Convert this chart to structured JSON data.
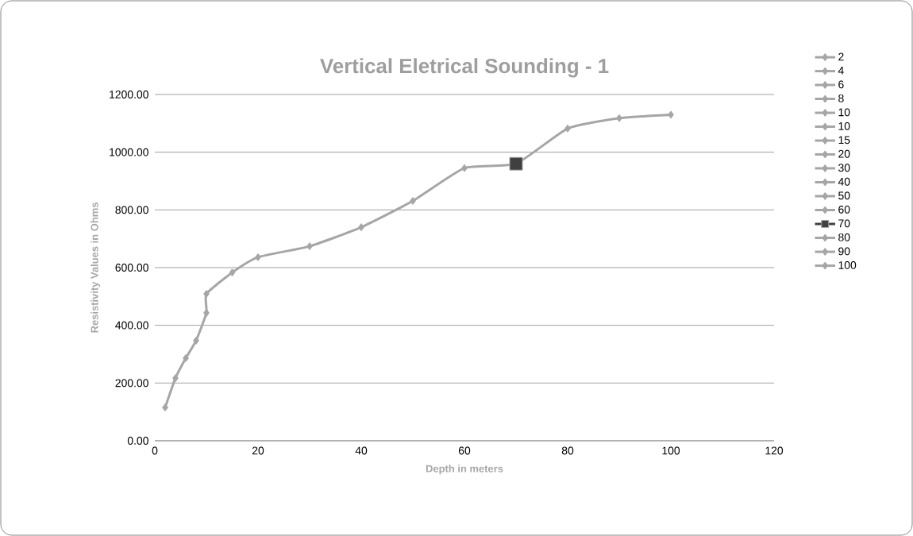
{
  "chart_data": {
    "type": "line",
    "title": "Vertical Eletrical Sounding - 1",
    "xlabel": "Depth in meters",
    "ylabel": "Resistivity Values in  Ohms",
    "xlim": [
      0,
      120
    ],
    "xticks": [
      0,
      20,
      40,
      60,
      80,
      100,
      120
    ],
    "ylim": [
      0,
      1200
    ],
    "yticks": [
      {
        "value": 0,
        "label": "0.00"
      },
      {
        "value": 200,
        "label": "200.00"
      },
      {
        "value": 400,
        "label": "400.00"
      },
      {
        "value": 600,
        "label": "600.00"
      },
      {
        "value": 800,
        "label": "800.00"
      },
      {
        "value": 1000,
        "label": "1000.00"
      },
      {
        "value": 1200,
        "label": "1200.00"
      }
    ],
    "grid": "y",
    "legend": "right",
    "marker": "diamond",
    "series": [
      {
        "color": "#a6a6a6",
        "marker": "none",
        "x": [
          2,
          4,
          6,
          8,
          10,
          10,
          15,
          20,
          30,
          40,
          50,
          60,
          70,
          80,
          90,
          100
        ],
        "values": [
          115,
          217,
          286,
          347,
          443,
          509,
          583,
          636,
          674,
          740,
          831,
          945,
          960,
          1082,
          1118,
          1130
        ]
      },
      {
        "name": "2",
        "color": "#a6a6a6",
        "x": [
          2
        ],
        "values": [
          115
        ]
      },
      {
        "name": "4",
        "color": "#a6a6a6",
        "x": [
          4
        ],
        "values": [
          217
        ]
      },
      {
        "name": "6",
        "color": "#a6a6a6",
        "x": [
          6
        ],
        "values": [
          286
        ]
      },
      {
        "name": "8",
        "color": "#a6a6a6",
        "x": [
          8
        ],
        "values": [
          347
        ]
      },
      {
        "name": "10",
        "color": "#a6a6a6",
        "x": [
          10
        ],
        "values": [
          443
        ]
      },
      {
        "name": "10",
        "color": "#a6a6a6",
        "x": [
          10
        ],
        "values": [
          509
        ]
      },
      {
        "name": "15",
        "color": "#a6a6a6",
        "x": [
          15
        ],
        "values": [
          583
        ]
      },
      {
        "name": "20",
        "color": "#a6a6a6",
        "x": [
          20
        ],
        "values": [
          636
        ]
      },
      {
        "name": "30",
        "color": "#a6a6a6",
        "x": [
          30
        ],
        "values": [
          674
        ]
      },
      {
        "name": "40",
        "color": "#a6a6a6",
        "x": [
          40
        ],
        "values": [
          740
        ]
      },
      {
        "name": "50",
        "color": "#a6a6a6",
        "x": [
          50
        ],
        "values": [
          831
        ]
      },
      {
        "name": "60",
        "color": "#a6a6a6",
        "x": [
          60
        ],
        "values": [
          945
        ]
      },
      {
        "name": "70",
        "color": "#404040",
        "x": [
          70
        ],
        "values": [
          960
        ],
        "marker": "square"
      },
      {
        "name": "80",
        "color": "#a6a6a6",
        "x": [
          80
        ],
        "values": [
          1082
        ]
      },
      {
        "name": "90",
        "color": "#a6a6a6",
        "x": [
          90
        ],
        "values": [
          1118
        ]
      },
      {
        "name": "100",
        "color": "#a6a6a6",
        "x": [
          100
        ],
        "values": [
          1130
        ]
      }
    ]
  }
}
